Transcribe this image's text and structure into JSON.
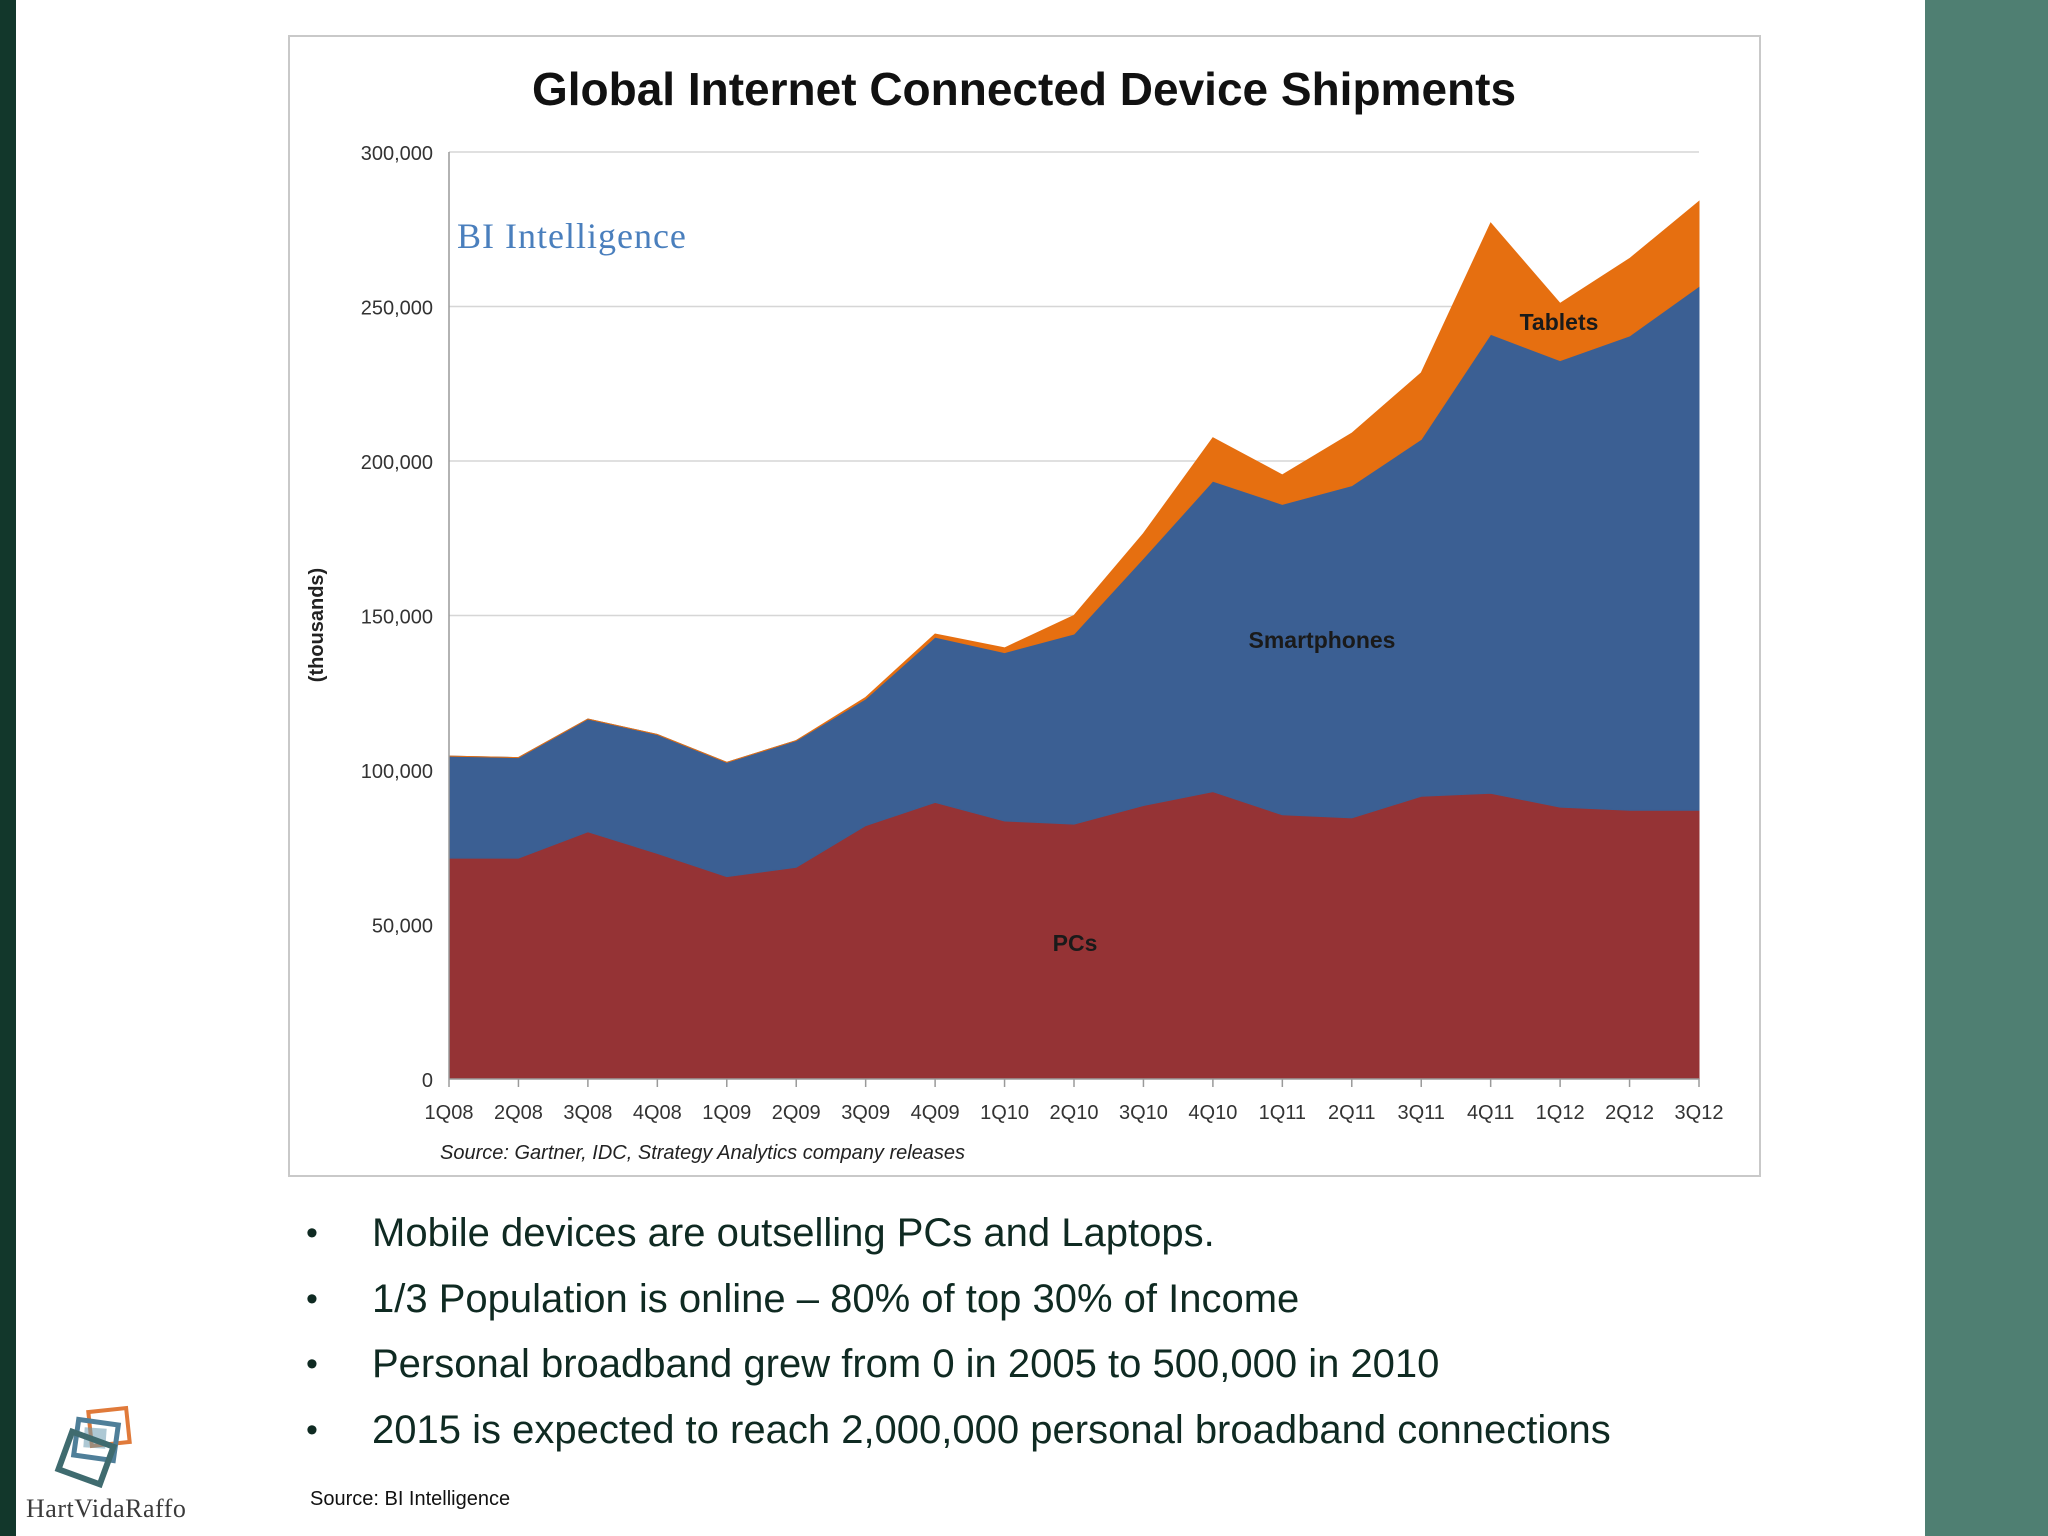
{
  "slide": {
    "bullets": [
      "Mobile devices are outselling PCs and Laptops.",
      "1/3 Population is online – 80% of top 30% of Income",
      "Personal broadband grew from 0 in 2005 to 500,000 in 2010",
      "2015 is expected to reach 2,000,000 personal broadband connections"
    ],
    "source": "Source: BI Intelligence",
    "logo_text": "HartVidaRaffo"
  },
  "colors": {
    "left_bar": "#12372b",
    "right_bar": "#4f7f72",
    "pcs": "#953335",
    "smartphones": "#3b5f93",
    "tablets": "#e66f10",
    "watermark": "#4a7fbd"
  },
  "chart_data": {
    "type": "area",
    "stacked": true,
    "title": "Global Internet Connected Device Shipments",
    "watermark": "BI Intelligence",
    "ylabel": "(thousands)",
    "xlabel": "",
    "ylim": [
      0,
      300000
    ],
    "yticks": [
      0,
      50000,
      100000,
      150000,
      200000,
      250000,
      300000
    ],
    "ytick_labels": [
      "0",
      "50,000",
      "100,000",
      "150,000",
      "200,000",
      "250,000",
      "300,000"
    ],
    "grid": true,
    "categories": [
      "1Q08",
      "2Q08",
      "3Q08",
      "4Q08",
      "1Q09",
      "2Q09",
      "3Q09",
      "4Q09",
      "1Q10",
      "2Q10",
      "3Q10",
      "4Q10",
      "1Q11",
      "2Q11",
      "3Q11",
      "4Q11",
      "1Q12",
      "2Q12",
      "3Q12"
    ],
    "series": [
      {
        "name": "PCs",
        "values": [
          71500,
          71500,
          80000,
          73000,
          65500,
          68500,
          82000,
          89500,
          83500,
          82500,
          88500,
          93000,
          85500,
          84500,
          91500,
          92500,
          88000,
          87000,
          87000
        ]
      },
      {
        "name": "Smartphones",
        "values": [
          33000,
          32500,
          36500,
          38500,
          37000,
          41000,
          41000,
          53500,
          54500,
          61500,
          80000,
          100500,
          100500,
          107500,
          115500,
          148500,
          144500,
          153500,
          169500
        ]
      },
      {
        "name": "Tablets",
        "values": [
          0,
          0,
          0,
          0,
          0,
          0,
          500,
          1000,
          1500,
          6000,
          8000,
          14000,
          9500,
          17000,
          21500,
          36000,
          18500,
          25000,
          27500
        ]
      }
    ],
    "annotations": [
      "Source: Gartner, IDC, Strategy Analytics company releases"
    ]
  }
}
